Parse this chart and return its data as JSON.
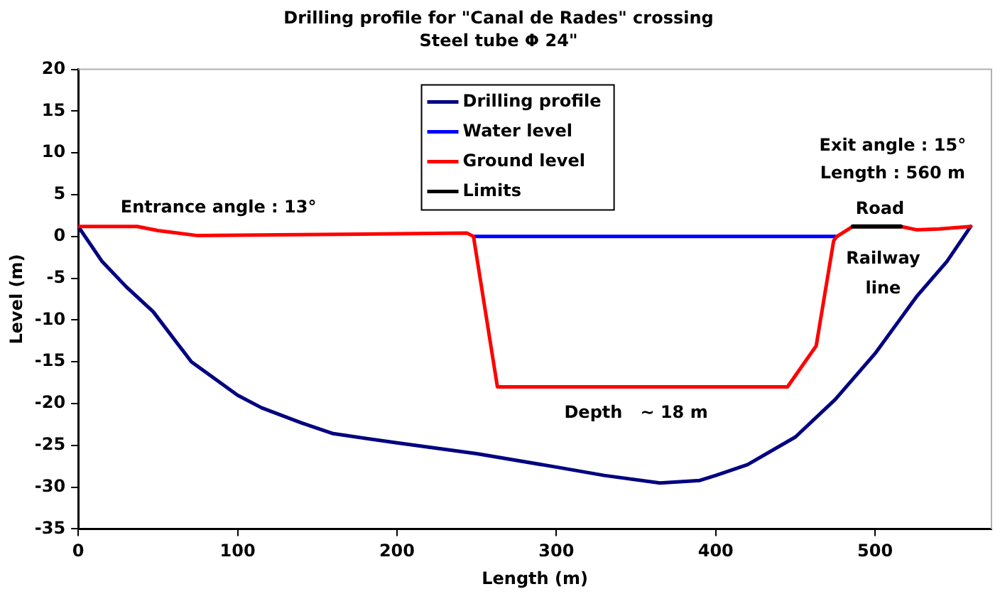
{
  "chart_data": {
    "type": "line",
    "title": "Drilling profile for \"Canal de Rades\" crossing",
    "subtitle": "Steel tube Φ 24\"",
    "xlabel": "Length (m)",
    "ylabel": "Level (m)",
    "xlim": [
      0,
      573
    ],
    "xticks": [
      0,
      100,
      200,
      300,
      400,
      500
    ],
    "ylim": [
      -35,
      20
    ],
    "yticks": [
      -35,
      -30,
      -25,
      -20,
      -15,
      -10,
      -5,
      0,
      5,
      10,
      15,
      20
    ],
    "grid": false,
    "legend": "top",
    "marker": "none",
    "line_style": "solid",
    "series": [
      {
        "name": "Drilling profile",
        "color": "#000080",
        "x": [
          0,
          15,
          30,
          47,
          71,
          100,
          115,
          140,
          160,
          200,
          250,
          300,
          330,
          365,
          390,
          400,
          420,
          450,
          475,
          500,
          526,
          545,
          560
        ],
        "values": [
          1.2,
          -3,
          -6,
          -9,
          -15,
          -19,
          -20.5,
          -22.3,
          -23.6,
          -24.7,
          -26,
          -27.6,
          -28.6,
          -29.5,
          -29.2,
          -28.6,
          -27.3,
          -24,
          -19.5,
          -14,
          -7.2,
          -3,
          1.2
        ]
      },
      {
        "name": "Water level",
        "color": "#0000ff",
        "x": [
          248,
          476
        ],
        "values": [
          0,
          0
        ]
      },
      {
        "name": "Ground level",
        "color": "#ff0000",
        "x": [
          0,
          37,
          50,
          75,
          244,
          248,
          263,
          445,
          463,
          474,
          476,
          486,
          516,
          526,
          540,
          560
        ],
        "values": [
          1.2,
          1.2,
          0.7,
          0.1,
          0.4,
          0,
          -18,
          -18,
          -13.1,
          -0.5,
          0,
          1.2,
          1.2,
          0.8,
          0.9,
          1.2
        ]
      },
      {
        "name": "Limits",
        "color": "#000000",
        "x": [
          486,
          516
        ],
        "values": [
          1.2,
          1.2
        ]
      }
    ],
    "annotations": [
      "Entrance angle : 13°",
      "Exit angle : 15°",
      "Length : 560 m",
      "Road",
      "Railway\nline",
      "Depth   ~ 18 m"
    ]
  }
}
